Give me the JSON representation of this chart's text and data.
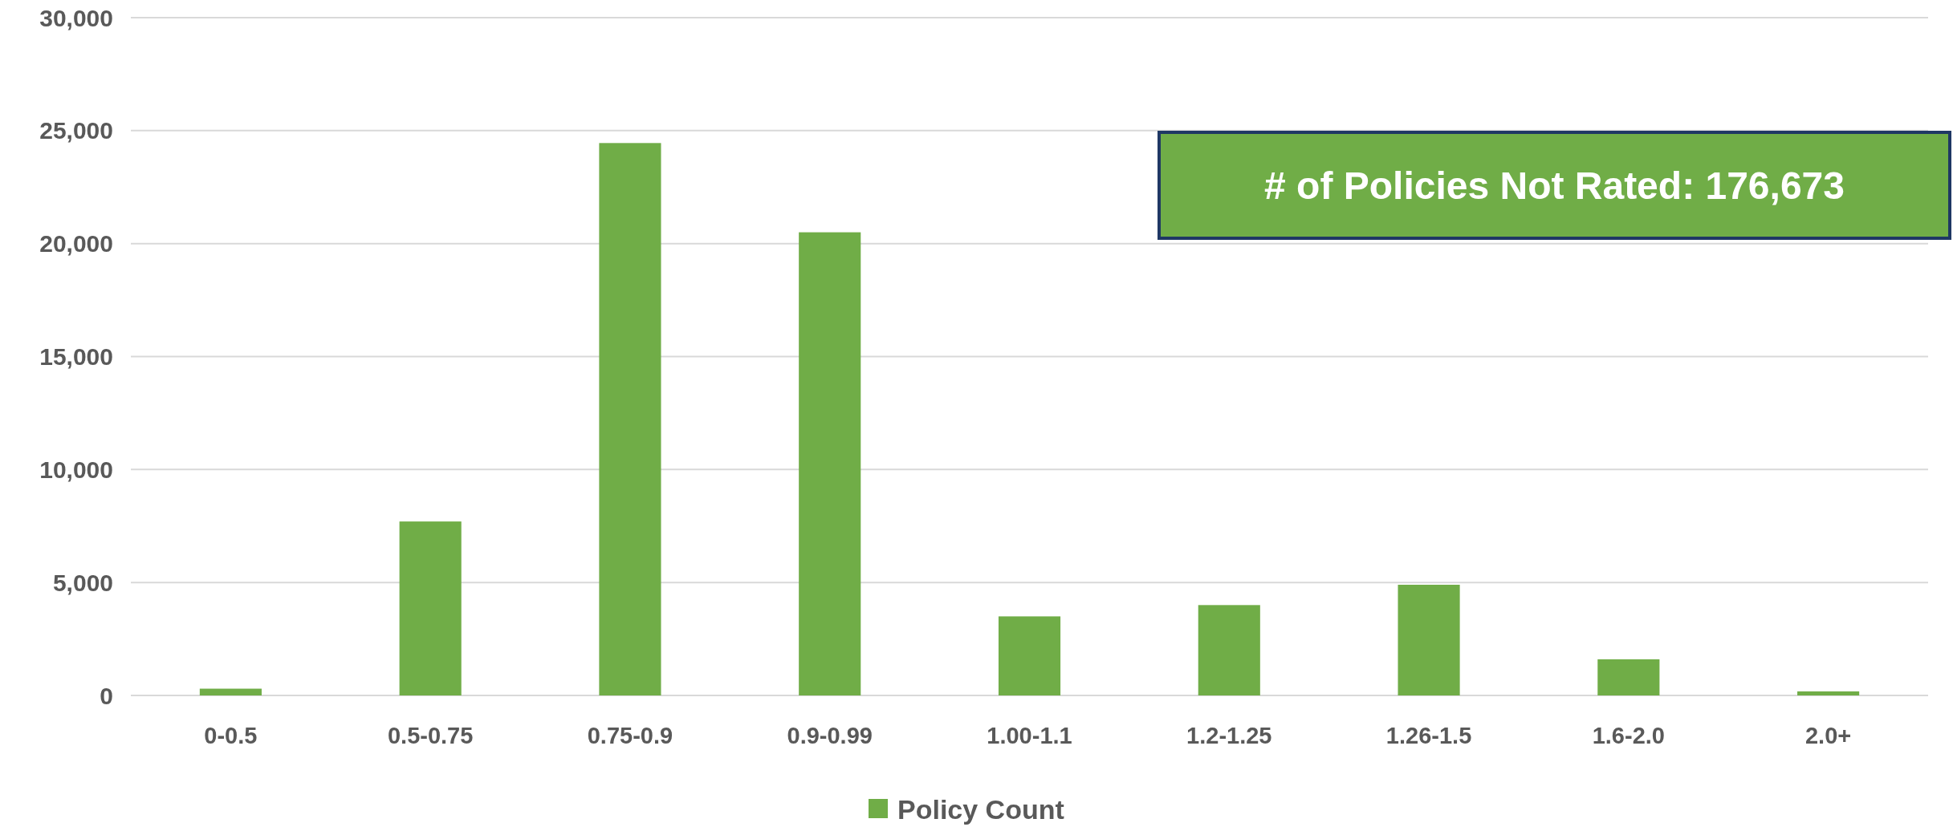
{
  "chart_data": {
    "type": "bar",
    "categories": [
      "0-0.5",
      "0.5-0.75",
      "0.75-0.9",
      "0.9-0.99",
      "1.00-1.1",
      "1.2-1.25",
      "1.26-1.5",
      "1.6-2.0",
      "2.0+"
    ],
    "series": [
      {
        "name": "Policy Count",
        "color": "#70ad47",
        "values": [
          300,
          7700,
          24450,
          20500,
          3500,
          4000,
          4900,
          1600,
          180
        ]
      }
    ],
    "ylim": [
      0,
      30000
    ],
    "yticks": [
      {
        "value": 0,
        "label": "0"
      },
      {
        "value": 5000,
        "label": "5,000"
      },
      {
        "value": 10000,
        "label": "10,000"
      },
      {
        "value": 15000,
        "label": "15,000"
      },
      {
        "value": 20000,
        "label": "20,000"
      },
      {
        "value": 25000,
        "label": "25,000"
      },
      {
        "value": 30000,
        "label": "30,000"
      }
    ],
    "grid": "y",
    "legend": "bottom",
    "annotations": [
      "# of Policies Not Rated: 176,673"
    ]
  }
}
